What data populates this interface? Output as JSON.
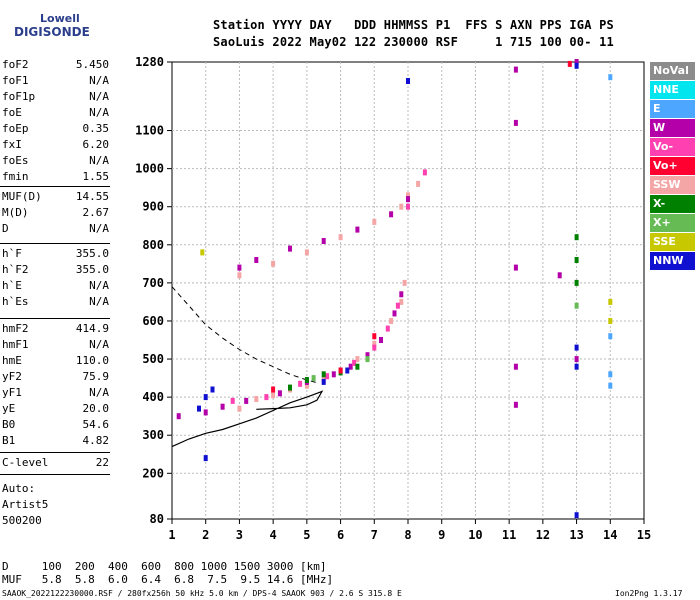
{
  "logo": {
    "top": "Lowell",
    "bottom": "DIGISONDE"
  },
  "header": {
    "line1": "Station YYYY DAY   DDD HHMMSS P1  FFS S AXN PPS IGA PS",
    "line2": "SaoLuis 2022 May02 122 230000 RSF     1 715 100 00- 11"
  },
  "params_a": [
    {
      "label": "foF2",
      "value": "5.450"
    },
    {
      "label": "foF1",
      "value": "N/A"
    },
    {
      "label": "foF1p",
      "value": "N/A"
    },
    {
      "label": "foE",
      "value": "N/A"
    },
    {
      "label": "foEp",
      "value": "0.35"
    },
    {
      "label": "fxI",
      "value": "6.20"
    },
    {
      "label": "foEs",
      "value": "N/A"
    },
    {
      "label": "fmin",
      "value": "1.55"
    }
  ],
  "params_b": [
    {
      "label": "MUF(D)",
      "value": "14.55"
    },
    {
      "label": "M(D)",
      "value": "2.67"
    },
    {
      "label": "D",
      "value": "N/A"
    }
  ],
  "params_c": [
    {
      "label": "h`F",
      "value": "355.0"
    },
    {
      "label": "h`F2",
      "value": "355.0"
    },
    {
      "label": "h`E",
      "value": "N/A"
    },
    {
      "label": "h`Es",
      "value": "N/A"
    }
  ],
  "params_d": [
    {
      "label": "hmF2",
      "value": "414.9"
    },
    {
      "label": "hmF1",
      "value": "N/A"
    },
    {
      "label": "hmE",
      "value": "110.0"
    },
    {
      "label": "yF2",
      "value": "75.9"
    },
    {
      "label": "yF1",
      "value": "N/A"
    },
    {
      "label": "yE",
      "value": "20.0"
    },
    {
      "label": "B0",
      "value": "54.6"
    },
    {
      "label": "B1",
      "value": "4.82"
    }
  ],
  "params_e": [
    {
      "label": "C-level",
      "value": "22"
    }
  ],
  "scaling": {
    "line1": "Auto:",
    "line2": "Artist5",
    "line3": "500200"
  },
  "legend": [
    {
      "label": "NoVal",
      "color": "#8c8c8c"
    },
    {
      "label": "NNE",
      "color": "#00e5ee"
    },
    {
      "label": "E",
      "color": "#4da6ff"
    },
    {
      "label": "W",
      "color": "#b400a8"
    },
    {
      "label": "Vo-",
      "color": "#ff40b0"
    },
    {
      "label": "Vo+",
      "color": "#ff0030"
    },
    {
      "label": "SSW",
      "color": "#f4a6a6"
    },
    {
      "label": "X-",
      "color": "#008000"
    },
    {
      "label": "X+",
      "color": "#66bb55"
    },
    {
      "label": "SSE",
      "color": "#c8c800"
    },
    {
      "label": "NNW",
      "color": "#1010d0"
    }
  ],
  "muf_table": {
    "d_row": "D     100  200  400  600  800 1000 1500 3000 [km]",
    "muf_row": "MUF   5.8  5.8  6.0  6.4  6.8  7.5  9.5 14.6 [MHz]"
  },
  "footer": "SAAOK_2022122230000.RSF / 280fx256h 50 kHz 5.0 km / DPS-4 SAAOK 903 / 2.6 S 315.8 E",
  "version": "Ion2Png 1.3.17",
  "chart_data": {
    "type": "scatter",
    "x_ticks": [
      "1",
      "2",
      "3",
      "4",
      "5",
      "6",
      "7",
      "8",
      "9",
      "10",
      "11",
      "12",
      "13",
      "14",
      "15"
    ],
    "y_ticks": [
      "80",
      "200",
      "300",
      "400",
      "500",
      "600",
      "700",
      "800",
      "900",
      "1000",
      "1100",
      "1280"
    ],
    "xlim": [
      1,
      15
    ],
    "ylim": [
      80,
      1280
    ],
    "grid": true,
    "xlabel": "",
    "ylabel": "",
    "legend_position": "right",
    "series": [
      {
        "name": "SSW",
        "points": [
          [
            3.0,
            370
          ],
          [
            3.5,
            395
          ],
          [
            4.0,
            405
          ],
          [
            4.5,
            420
          ],
          [
            5.0,
            430
          ],
          [
            5.5,
            445
          ],
          [
            6.0,
            470
          ],
          [
            6.5,
            500
          ],
          [
            7.0,
            540
          ],
          [
            7.5,
            600
          ],
          [
            7.8,
            650
          ],
          [
            7.9,
            700
          ],
          [
            3.0,
            720
          ],
          [
            4.0,
            750
          ],
          [
            5.0,
            780
          ],
          [
            6.0,
            820
          ],
          [
            7.0,
            860
          ],
          [
            7.8,
            900
          ],
          [
            8.0,
            930
          ],
          [
            8.3,
            960
          ]
        ]
      },
      {
        "name": "W",
        "points": [
          [
            1.2,
            350
          ],
          [
            2.0,
            360
          ],
          [
            2.5,
            375
          ],
          [
            3.2,
            390
          ],
          [
            4.2,
            410
          ],
          [
            5.0,
            440
          ],
          [
            5.8,
            460
          ],
          [
            6.3,
            480
          ],
          [
            6.8,
            510
          ],
          [
            7.2,
            550
          ],
          [
            7.6,
            620
          ],
          [
            7.8,
            670
          ],
          [
            3.0,
            740
          ],
          [
            3.5,
            760
          ],
          [
            4.5,
            790
          ],
          [
            5.5,
            810
          ],
          [
            6.5,
            840
          ],
          [
            7.5,
            880
          ],
          [
            8.0,
            920
          ],
          [
            11.2,
            1260
          ],
          [
            11.2,
            1120
          ],
          [
            11.2,
            740
          ],
          [
            11.2,
            480
          ],
          [
            11.2,
            380
          ],
          [
            12.5,
            720
          ],
          [
            13.0,
            1280
          ],
          [
            13.0,
            500
          ]
        ]
      },
      {
        "name": "Vo-",
        "points": [
          [
            2.8,
            390
          ],
          [
            3.8,
            400
          ],
          [
            4.8,
            435
          ],
          [
            5.6,
            455
          ],
          [
            6.4,
            490
          ],
          [
            7.0,
            530
          ],
          [
            7.4,
            580
          ],
          [
            7.7,
            640
          ],
          [
            8.0,
            900
          ],
          [
            8.5,
            990
          ]
        ]
      },
      {
        "name": "X-",
        "points": [
          [
            4.5,
            425
          ],
          [
            5.0,
            445
          ],
          [
            5.5,
            460
          ],
          [
            6.0,
            465
          ],
          [
            6.5,
            480
          ],
          [
            13.0,
            820
          ],
          [
            13.0,
            760
          ],
          [
            13.0,
            700
          ]
        ]
      },
      {
        "name": "NNW",
        "points": [
          [
            1.8,
            370
          ],
          [
            2.0,
            400
          ],
          [
            2.2,
            420
          ],
          [
            5.5,
            440
          ],
          [
            6.2,
            470
          ],
          [
            2.0,
            240
          ],
          [
            8.0,
            1230
          ],
          [
            13.0,
            530
          ],
          [
            13.0,
            480
          ],
          [
            13.0,
            90
          ],
          [
            13.0,
            1270
          ]
        ]
      },
      {
        "name": "E",
        "points": [
          [
            14.0,
            1240
          ],
          [
            14.0,
            560
          ],
          [
            14.0,
            460
          ],
          [
            14.0,
            430
          ]
        ]
      },
      {
        "name": "SSE",
        "points": [
          [
            1.9,
            780
          ],
          [
            14.0,
            650
          ],
          [
            14.0,
            600
          ]
        ]
      },
      {
        "name": "Vo+",
        "points": [
          [
            4.0,
            420
          ],
          [
            6.0,
            470
          ],
          [
            7.0,
            560
          ],
          [
            12.8,
            1275
          ]
        ]
      },
      {
        "name": "X+",
        "points": [
          [
            5.2,
            450
          ],
          [
            6.8,
            500
          ],
          [
            13.0,
            640
          ]
        ]
      }
    ],
    "profile_curve": [
      [
        1.0,
        270
      ],
      [
        1.5,
        290
      ],
      [
        2.0,
        305
      ],
      [
        2.5,
        315
      ],
      [
        3.0,
        330
      ],
      [
        3.5,
        345
      ],
      [
        4.0,
        365
      ],
      [
        4.5,
        385
      ],
      [
        5.0,
        400
      ],
      [
        5.3,
        410
      ],
      [
        5.45,
        415
      ],
      [
        5.3,
        392
      ],
      [
        5.0,
        380
      ],
      [
        4.5,
        372
      ],
      [
        4.0,
        370
      ],
      [
        3.5,
        368
      ]
    ],
    "dashed_curve": [
      [
        1.0,
        690
      ],
      [
        1.5,
        640
      ],
      [
        2.0,
        590
      ],
      [
        2.5,
        555
      ],
      [
        3.0,
        525
      ],
      [
        3.5,
        500
      ],
      [
        4.0,
        480
      ],
      [
        4.5,
        460
      ],
      [
        5.0,
        445
      ],
      [
        5.3,
        438
      ]
    ]
  }
}
